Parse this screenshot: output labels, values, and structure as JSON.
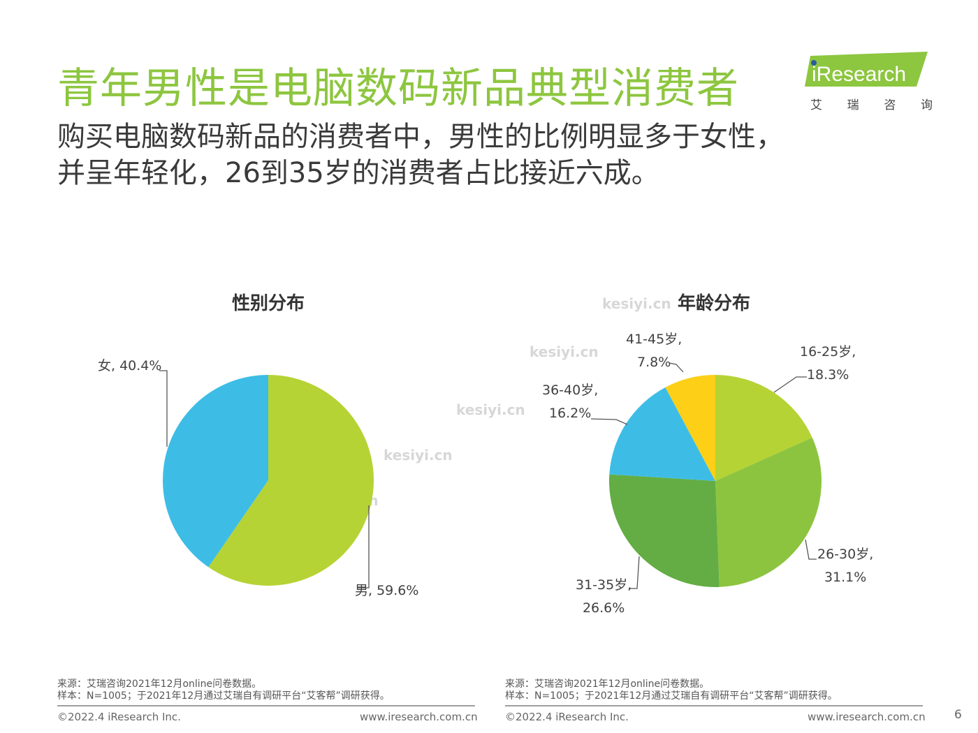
{
  "header": {
    "title": "青年男性是电脑数码新品典型消费者",
    "subtitle_line1": "购买电脑数码新品的消费者中，男性的比例明显多于女性，",
    "subtitle_line2": "并呈年轻化，26到35岁的消费者占比接近六成。"
  },
  "logo": {
    "brand": "iResearch",
    "chars": [
      "艾",
      "瑞",
      "咨",
      "询"
    ]
  },
  "watermark": "kesiyi.cn",
  "chart_data": [
    {
      "type": "pie",
      "title": "性别分布",
      "slices": [
        {
          "name": "男",
          "value": 59.6,
          "label": "男, 59.6%",
          "color": "#b5d334"
        },
        {
          "name": "女",
          "value": 40.4,
          "label": "女, 40.4%",
          "color": "#3dbde6"
        }
      ]
    },
    {
      "type": "pie",
      "title": "年龄分布",
      "slices": [
        {
          "name": "16-25岁",
          "value": 18.3,
          "label_line1": "16-25岁,",
          "label_line2": "18.3%",
          "color": "#b5d334"
        },
        {
          "name": "26-30岁",
          "value": 31.1,
          "label_line1": "26-30岁,",
          "label_line2": "31.1%",
          "color": "#8cc43f"
        },
        {
          "name": "31-35岁",
          "value": 26.6,
          "label_line1": "31-35岁,",
          "label_line2": "26.6%",
          "color": "#63ad44"
        },
        {
          "name": "36-40岁",
          "value": 16.2,
          "label_line1": "36-40岁,",
          "label_line2": "16.2%",
          "color": "#3dbde6"
        },
        {
          "name": "41-45岁",
          "value": 7.8,
          "label_line1": "41-45岁,",
          "label_line2": "7.8%",
          "color": "#fdcf17"
        }
      ]
    }
  ],
  "footer": {
    "source": "来源：艾瑞咨询2021年12月online问卷数据。",
    "sample": "样本：N=1005；于2021年12月通过艾瑞自有调研平台“艾客帮”调研获得。",
    "copyright": "©2022.4 iResearch Inc.",
    "url": "www.iresearch.com.cn",
    "page": "6"
  }
}
